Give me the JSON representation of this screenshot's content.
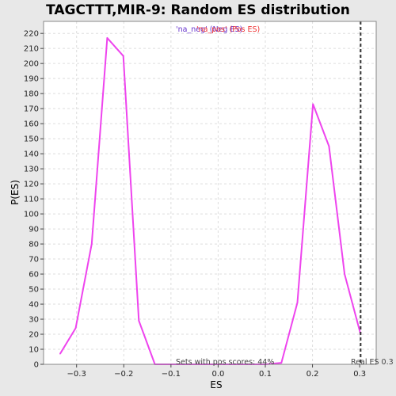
{
  "chart_data": {
    "type": "line",
    "title": "TAGCTTT,MIR-9: Random ES distribution",
    "xlabel": "ES",
    "ylabel": "P(ES)",
    "xlim": [
      -0.37,
      0.335
    ],
    "ylim": [
      0,
      228
    ],
    "xticks": [
      -0.3,
      -0.2,
      -0.1,
      0.0,
      0.1,
      0.2,
      0.3
    ],
    "xtick_labels": [
      "−0.3",
      "−0.2",
      "−0.1",
      "0.0",
      "0.1",
      "0.2",
      "0.3"
    ],
    "yticks": [
      0,
      10,
      20,
      30,
      40,
      50,
      60,
      70,
      80,
      90,
      100,
      110,
      120,
      130,
      140,
      150,
      160,
      170,
      180,
      190,
      200,
      210,
      220
    ],
    "ytick_labels": [
      "0",
      "10",
      "20",
      "30",
      "40",
      "50",
      "60",
      "70",
      "80",
      "90",
      "100",
      "110",
      "120",
      "130",
      "140",
      "150",
      "160",
      "170",
      "180",
      "190",
      "200",
      "210",
      "220"
    ],
    "grid": true,
    "series": [
      {
        "color": "#ee44ee",
        "x": [
          -0.335,
          -0.302,
          -0.268,
          -0.235,
          -0.201,
          -0.168,
          -0.134,
          -0.101,
          -0.067,
          -0.034,
          0.0,
          0.034,
          0.067,
          0.101,
          0.134,
          0.168,
          0.201,
          0.235,
          0.268,
          0.302
        ],
        "y": [
          7,
          24,
          80,
          217,
          205,
          29,
          0,
          0,
          0,
          0,
          0,
          0,
          0,
          0,
          1,
          41,
          173,
          145,
          60,
          20
        ]
      }
    ],
    "legend": {
      "position": "top-center",
      "entries": [
        {
          "text": "'na_neg' (Neg ES)",
          "color": "#6633cc"
        },
        {
          "text": "'na_pos' (Pos ES)",
          "color": "#ee3333"
        }
      ]
    },
    "real_es": {
      "x": 0.302,
      "label": "Real ES 0.3",
      "color": "#333333"
    },
    "annotation": "Sets with pos scores: 44%",
    "colors": {
      "plot_bg": "#ffffff",
      "page_bg": "#e8e8e8",
      "grid": "#dddddd",
      "line": "#ee44ee"
    }
  }
}
